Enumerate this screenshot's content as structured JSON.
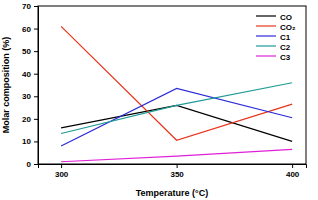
{
  "chart_data": {
    "type": "line",
    "x_label": "Temperature (°C)",
    "y_label": "Molar composition (%)",
    "x": [
      300,
      350,
      400
    ],
    "series": [
      {
        "name": "CO",
        "color": "#000000",
        "values": [
          16,
          26,
          10
        ]
      },
      {
        "name": "CO₂",
        "color": "#e8341c",
        "values": [
          61,
          10.5,
          26.5
        ]
      },
      {
        "name": "C1",
        "color": "#2a2ad8",
        "values": [
          8,
          33.5,
          20.5
        ]
      },
      {
        "name": "C2",
        "color": "#1e9a96",
        "values": [
          13.5,
          26,
          36
        ]
      },
      {
        "name": "C3",
        "color": "#e020d8",
        "values": [
          1,
          3.5,
          6.5
        ]
      }
    ],
    "xlim": [
      290,
      406
    ],
    "xticks": [
      300,
      350,
      400
    ],
    "ylim": [
      0,
      70
    ],
    "yticks": [
      0,
      10,
      20,
      30,
      40,
      50,
      60,
      70
    ],
    "legend": "upper right"
  }
}
